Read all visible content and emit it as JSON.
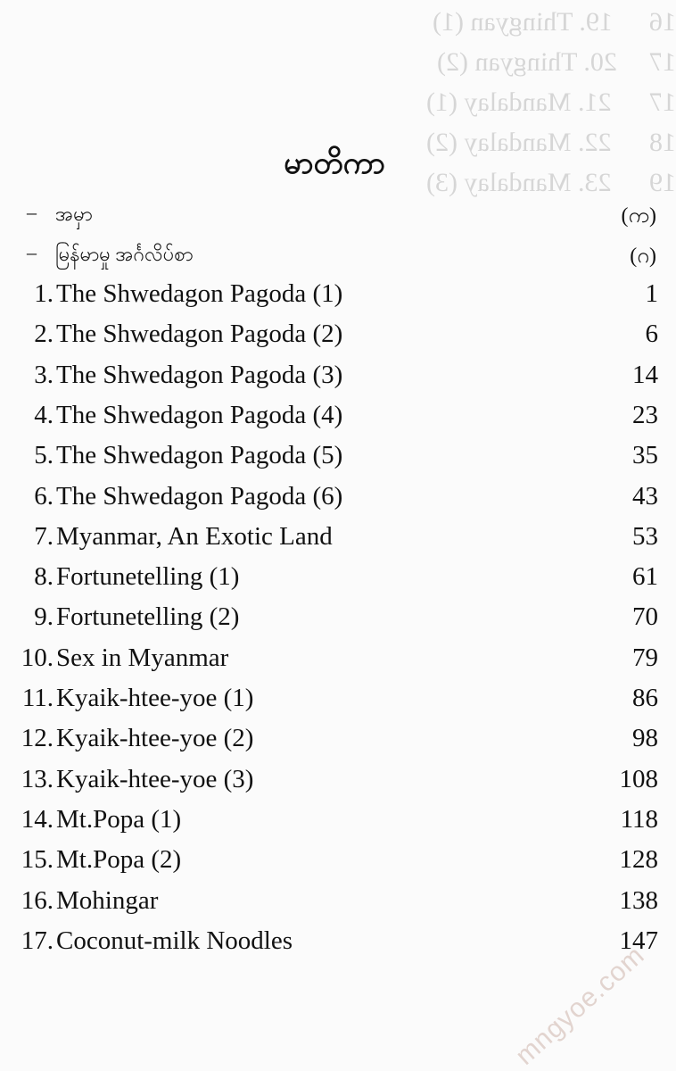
{
  "bleed_through": [
    {
      "text": "19. Thingyan (1)",
      "page": "16"
    },
    {
      "text": "20. Thingyan (2)",
      "page": "17"
    },
    {
      "text": "21. Mandalay (1)",
      "page": "17"
    },
    {
      "text": "22. Mandalay (2)",
      "page": "18"
    },
    {
      "text": "23. Mandalay (3)",
      "page": "19"
    }
  ],
  "heading": "မာတိကာ",
  "front_matter": [
    {
      "dash": "–",
      "label": "အမှာ",
      "page": "(က)"
    },
    {
      "dash": "–",
      "label": "မြန်မာမှု အင်္ဂလိပ်စာ",
      "page": "(ဂ)"
    }
  ],
  "entries": [
    {
      "num": "1.",
      "title": "The Shwedagon Pagoda (1)",
      "page": "1"
    },
    {
      "num": "2.",
      "title": "The Shwedagon Pagoda (2)",
      "page": "6"
    },
    {
      "num": "3.",
      "title": "The Shwedagon Pagoda (3)",
      "page": "14"
    },
    {
      "num": "4.",
      "title": "The Shwedagon Pagoda (4)",
      "page": "23"
    },
    {
      "num": "5.",
      "title": "The Shwedagon Pagoda (5)",
      "page": "35"
    },
    {
      "num": "6.",
      "title": "The Shwedagon Pagoda (6)",
      "page": "43"
    },
    {
      "num": "7.",
      "title": "Myanmar, An Exotic Land",
      "page": "53"
    },
    {
      "num": "8.",
      "title": "Fortunetelling (1)",
      "page": "61"
    },
    {
      "num": "9.",
      "title": "Fortunetelling (2)",
      "page": "70"
    },
    {
      "num": "10.",
      "title": "Sex in Myanmar",
      "page": "79"
    },
    {
      "num": "11.",
      "title": "Kyaik-htee-yoe (1)",
      "page": "86"
    },
    {
      "num": "12.",
      "title": "Kyaik-htee-yoe (2)",
      "page": "98"
    },
    {
      "num": "13.",
      "title": "Kyaik-htee-yoe (3)",
      "page": "108"
    },
    {
      "num": "14.",
      "title": "Mt.Popa (1)",
      "page": "118"
    },
    {
      "num": "15.",
      "title": "Mt.Popa (2)",
      "page": "128"
    },
    {
      "num": "16.",
      "title": "Mohingar",
      "page": "138"
    },
    {
      "num": "17.",
      "title": "Coconut-milk Noodles",
      "page": "147"
    }
  ],
  "watermark": "mngyoe.com"
}
